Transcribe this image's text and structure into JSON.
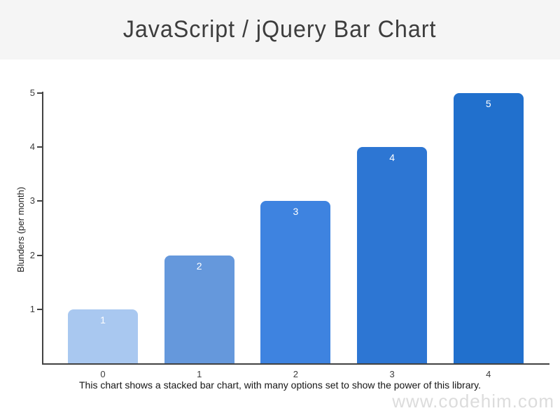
{
  "header": {
    "title": "JavaScript / jQuery Bar Chart"
  },
  "chart_data": {
    "type": "bar",
    "title": "JavaScript / jQuery Bar Chart",
    "categories": [
      "0",
      "1",
      "2",
      "3",
      "4"
    ],
    "values": [
      1,
      2,
      3,
      4,
      5
    ],
    "bar_labels": [
      "1",
      "2",
      "3",
      "4",
      "5"
    ],
    "xlabel": "",
    "ylabel": "Blunders (per month)",
    "ylim": [
      0,
      5
    ],
    "yticks": [
      1,
      2,
      3,
      4,
      5
    ],
    "grid": false,
    "legend_position": "none",
    "bar_colors": [
      "#a9c8f0",
      "#6598dc",
      "#3e83e0",
      "#2d76d3",
      "#2170cd"
    ],
    "bar_label_color": "#ffffff",
    "axis_color": "#424242"
  },
  "caption": {
    "text": "This chart shows a stacked bar chart, with many options set to show the power of this library."
  },
  "watermark": {
    "text": "www.codehim.com"
  },
  "colors": {
    "header_bg": "#f5f5f5",
    "title_text": "#3d3d3d",
    "watermark_text": "#dcdcdc"
  }
}
